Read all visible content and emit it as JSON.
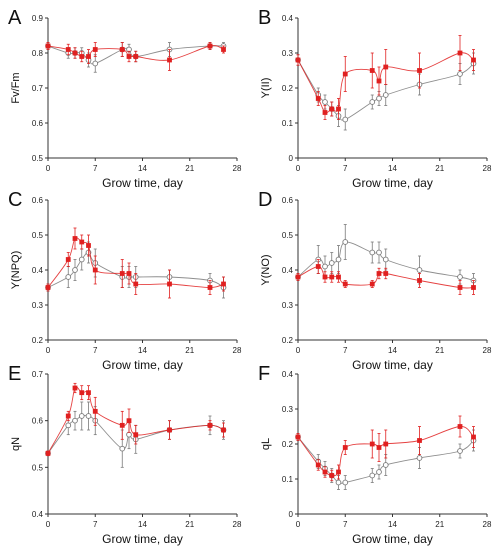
{
  "chart_data": [
    {
      "type": "scatter",
      "panel": "A",
      "ylabel": "Fv/Fm",
      "xlabel": "Grow time, day",
      "xlim": [
        0,
        28
      ],
      "ylim": [
        0.5,
        0.9
      ],
      "xticks": [
        0,
        7,
        14,
        21,
        28
      ],
      "yticks": [
        0.5,
        0.6,
        0.7,
        0.8,
        0.9
      ],
      "ytick_labels": [
        "0.5",
        "0.6",
        "0.7",
        "0.8",
        "0.9"
      ],
      "series": [
        {
          "color": "#e02020",
          "marker": "filled-square",
          "x": [
            0,
            3,
            4,
            5,
            6,
            7,
            11,
            12,
            13,
            18,
            24,
            26
          ],
          "y": [
            0.82,
            0.81,
            0.8,
            0.79,
            0.79,
            0.81,
            0.81,
            0.79,
            0.79,
            0.78,
            0.82,
            0.81
          ],
          "err": [
            0.01,
            0.015,
            0.015,
            0.015,
            0.02,
            0.02,
            0.02,
            0.015,
            0.015,
            0.03,
            0.01,
            0.01
          ]
        },
        {
          "color": "#7a7a7a",
          "marker": "open-circle",
          "x": [
            0,
            3,
            4,
            5,
            6,
            7,
            11,
            12,
            13,
            18,
            24,
            26
          ],
          "y": [
            0.82,
            0.8,
            0.8,
            0.8,
            0.78,
            0.77,
            0.81,
            0.81,
            0.79,
            0.81,
            0.82,
            0.82
          ],
          "err": [
            0.01,
            0.015,
            0.015,
            0.015,
            0.02,
            0.025,
            0.02,
            0.015,
            0.015,
            0.02,
            0.01,
            0.01
          ]
        }
      ]
    },
    {
      "type": "scatter",
      "panel": "B",
      "ylabel": "Y(II)",
      "xlabel": "Grow time, day",
      "xlim": [
        0,
        28
      ],
      "ylim": [
        0,
        0.4
      ],
      "xticks": [
        0,
        7,
        14,
        21,
        28
      ],
      "yticks": [
        0,
        0.1,
        0.2,
        0.3,
        0.4
      ],
      "ytick_labels": [
        "0",
        "0.1",
        "0.2",
        "0.3",
        "0.4"
      ],
      "series": [
        {
          "color": "#e02020",
          "marker": "filled-square",
          "x": [
            0,
            3,
            4,
            5,
            6,
            7,
            11,
            12,
            13,
            18,
            24,
            26
          ],
          "y": [
            0.28,
            0.17,
            0.13,
            0.14,
            0.14,
            0.24,
            0.25,
            0.22,
            0.26,
            0.25,
            0.3,
            0.28
          ],
          "err": [
            0.015,
            0.02,
            0.02,
            0.02,
            0.03,
            0.05,
            0.05,
            0.04,
            0.05,
            0.05,
            0.05,
            0.03
          ]
        },
        {
          "color": "#7a7a7a",
          "marker": "open-circle",
          "x": [
            0,
            3,
            4,
            5,
            6,
            7,
            11,
            12,
            13,
            18,
            24,
            26
          ],
          "y": [
            0.28,
            0.18,
            0.16,
            0.14,
            0.12,
            0.11,
            0.16,
            0.17,
            0.18,
            0.21,
            0.24,
            0.27
          ],
          "err": [
            0.015,
            0.02,
            0.02,
            0.02,
            0.03,
            0.03,
            0.02,
            0.02,
            0.03,
            0.03,
            0.03,
            0.03
          ]
        }
      ]
    },
    {
      "type": "scatter",
      "panel": "C",
      "ylabel": "Y(NPQ)",
      "xlabel": "Grow time, day",
      "xlim": [
        0,
        28
      ],
      "ylim": [
        0.2,
        0.6
      ],
      "xticks": [
        0,
        7,
        14,
        21,
        28
      ],
      "yticks": [
        0.2,
        0.3,
        0.4,
        0.5,
        0.6
      ],
      "ytick_labels": [
        "0.2",
        "0.3",
        "0.4",
        "0.5",
        "0.6"
      ],
      "series": [
        {
          "color": "#e02020",
          "marker": "filled-square",
          "x": [
            0,
            3,
            4,
            5,
            6,
            7,
            11,
            12,
            13,
            18,
            24,
            26
          ],
          "y": [
            0.35,
            0.43,
            0.49,
            0.48,
            0.47,
            0.4,
            0.39,
            0.39,
            0.36,
            0.36,
            0.35,
            0.36
          ],
          "err": [
            0.01,
            0.02,
            0.03,
            0.02,
            0.03,
            0.04,
            0.04,
            0.03,
            0.03,
            0.04,
            0.02,
            0.02
          ]
        },
        {
          "color": "#7a7a7a",
          "marker": "open-circle",
          "x": [
            0,
            3,
            4,
            5,
            6,
            7,
            11,
            12,
            13,
            18,
            24,
            26
          ],
          "y": [
            0.35,
            0.38,
            0.4,
            0.43,
            0.45,
            0.42,
            0.38,
            0.38,
            0.38,
            0.38,
            0.37,
            0.35
          ],
          "err": [
            0.01,
            0.03,
            0.03,
            0.03,
            0.03,
            0.04,
            0.03,
            0.03,
            0.03,
            0.02,
            0.02,
            0.03
          ]
        }
      ]
    },
    {
      "type": "scatter",
      "panel": "D",
      "ylabel": "Y(NO)",
      "xlabel": "Grow time, day",
      "xlim": [
        0,
        28
      ],
      "ylim": [
        0.2,
        0.6
      ],
      "xticks": [
        0,
        7,
        14,
        21,
        28
      ],
      "yticks": [
        0.2,
        0.3,
        0.4,
        0.5,
        0.6
      ],
      "ytick_labels": [
        "0.2",
        "0.3",
        "0.4",
        "0.5",
        "0.6"
      ],
      "series": [
        {
          "color": "#e02020",
          "marker": "filled-square",
          "x": [
            0,
            3,
            4,
            5,
            6,
            7,
            11,
            12,
            13,
            18,
            24,
            26
          ],
          "y": [
            0.38,
            0.41,
            0.38,
            0.38,
            0.38,
            0.36,
            0.36,
            0.39,
            0.39,
            0.37,
            0.35,
            0.35
          ],
          "err": [
            0.01,
            0.02,
            0.015,
            0.015,
            0.015,
            0.01,
            0.01,
            0.015,
            0.015,
            0.02,
            0.02,
            0.02
          ]
        },
        {
          "color": "#7a7a7a",
          "marker": "open-circle",
          "x": [
            0,
            3,
            4,
            5,
            6,
            7,
            11,
            12,
            13,
            18,
            24,
            26
          ],
          "y": [
            0.38,
            0.43,
            0.41,
            0.42,
            0.43,
            0.48,
            0.45,
            0.45,
            0.43,
            0.4,
            0.38,
            0.37
          ],
          "err": [
            0.01,
            0.04,
            0.03,
            0.03,
            0.04,
            0.05,
            0.03,
            0.03,
            0.03,
            0.04,
            0.02,
            0.02
          ]
        }
      ]
    },
    {
      "type": "scatter",
      "panel": "E",
      "ylabel": "qN",
      "xlabel": "Grow time, day",
      "xlim": [
        0,
        28
      ],
      "ylim": [
        0.4,
        0.7
      ],
      "xticks": [
        0,
        7,
        14,
        21,
        28
      ],
      "yticks": [
        0.4,
        0.5,
        0.6,
        0.7
      ],
      "ytick_labels": [
        "0.4",
        "0.5",
        "0.6",
        "0.7"
      ],
      "series": [
        {
          "color": "#e02020",
          "marker": "filled-square",
          "x": [
            0,
            3,
            4,
            5,
            6,
            7,
            11,
            12,
            13,
            18,
            24,
            26
          ],
          "y": [
            0.53,
            0.61,
            0.67,
            0.66,
            0.66,
            0.62,
            0.59,
            0.6,
            0.57,
            0.58,
            0.59,
            0.58
          ],
          "err": [
            0.005,
            0.01,
            0.01,
            0.015,
            0.015,
            0.03,
            0.03,
            0.025,
            0.02,
            0.02,
            0.01,
            0.015
          ]
        },
        {
          "color": "#7a7a7a",
          "marker": "open-circle",
          "x": [
            0,
            3,
            4,
            5,
            6,
            7,
            11,
            12,
            13,
            18,
            24,
            26
          ],
          "y": [
            0.53,
            0.59,
            0.6,
            0.61,
            0.61,
            0.6,
            0.54,
            0.57,
            0.56,
            0.58,
            0.59,
            0.58
          ],
          "err": [
            0.005,
            0.02,
            0.02,
            0.03,
            0.03,
            0.03,
            0.04,
            0.03,
            0.03,
            0.02,
            0.02,
            0.02
          ]
        }
      ]
    },
    {
      "type": "scatter",
      "panel": "F",
      "ylabel": "qL",
      "xlabel": "Grow time, day",
      "xlim": [
        0,
        28
      ],
      "ylim": [
        0,
        0.4
      ],
      "xticks": [
        0,
        7,
        14,
        21,
        28
      ],
      "yticks": [
        0,
        0.1,
        0.2,
        0.3,
        0.4
      ],
      "ytick_labels": [
        "0",
        "0.1",
        "0.2",
        "0.3",
        "0.4"
      ],
      "series": [
        {
          "color": "#e02020",
          "marker": "filled-square",
          "x": [
            0,
            3,
            4,
            5,
            6,
            7,
            11,
            12,
            13,
            18,
            24,
            26
          ],
          "y": [
            0.22,
            0.14,
            0.12,
            0.11,
            0.12,
            0.19,
            0.2,
            0.19,
            0.2,
            0.21,
            0.25,
            0.22
          ],
          "err": [
            0.01,
            0.015,
            0.015,
            0.015,
            0.02,
            0.02,
            0.04,
            0.04,
            0.04,
            0.04,
            0.03,
            0.03
          ]
        },
        {
          "color": "#7a7a7a",
          "marker": "open-circle",
          "x": [
            0,
            3,
            4,
            5,
            6,
            7,
            11,
            12,
            13,
            18,
            24,
            26
          ],
          "y": [
            0.22,
            0.15,
            0.13,
            0.11,
            0.09,
            0.09,
            0.11,
            0.12,
            0.14,
            0.16,
            0.18,
            0.21
          ],
          "err": [
            0.01,
            0.02,
            0.02,
            0.02,
            0.02,
            0.02,
            0.02,
            0.02,
            0.03,
            0.03,
            0.02,
            0.03
          ]
        }
      ]
    }
  ]
}
